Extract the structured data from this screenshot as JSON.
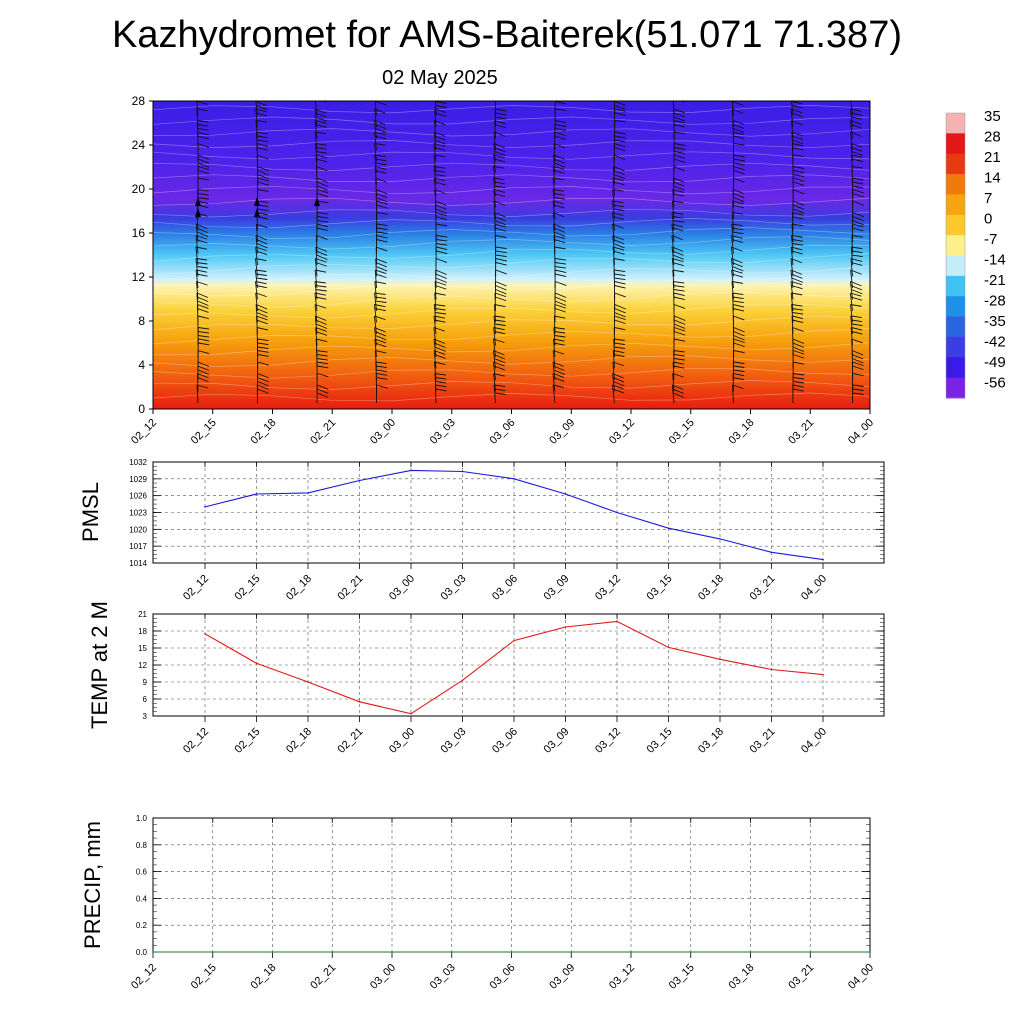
{
  "header": {
    "title": "Kazhydromet for AMS-Baiterek(51.071 71.387)",
    "subtitle": "02 May 2025"
  },
  "chart_data": [
    {
      "type": "heatmap",
      "name": "cross-section",
      "x_ticks": [
        "02_12",
        "02_15",
        "02_18",
        "02_21",
        "03_00",
        "03_03",
        "03_06",
        "03_09",
        "03_12",
        "03_15",
        "03_18",
        "03_21",
        "04_00"
      ],
      "y_ticks": [
        0,
        4,
        8,
        12,
        16,
        20,
        24,
        28
      ],
      "ylim": [
        0,
        28
      ],
      "freezing_level": [
        11.2,
        11.3,
        11.4,
        11.6,
        11.8,
        11.9,
        12.0,
        12.1,
        12.2,
        12.3,
        12.4,
        12.5,
        12.6
      ],
      "tropopause_level": [
        17.6,
        17.7,
        17.8,
        17.9,
        18.0,
        18.0,
        18.0,
        18.0,
        18.0,
        18.0,
        18.0,
        18.0,
        18.0
      ],
      "colorbar": {
        "labels": [
          "35",
          "28",
          "21",
          "14",
          "7",
          "0",
          "-7",
          "-14",
          "-21",
          "-28",
          "-35",
          "-42",
          "-49",
          "-56"
        ],
        "values": [
          35,
          28,
          21,
          14,
          7,
          0,
          -7,
          -14,
          -21,
          -28,
          -35,
          -42,
          -49,
          -56
        ],
        "colors": [
          "#f4b2b2",
          "#e21818",
          "#e83a10",
          "#f07a0c",
          "#f7a40e",
          "#fbc92a",
          "#fdf08a",
          "#c5ecf9",
          "#3fc3f4",
          "#1e90e8",
          "#2a64e0",
          "#3c3de2",
          "#3a1ae6",
          "#7b22e6"
        ]
      }
    },
    {
      "type": "line",
      "ylabel": "PMSL",
      "x": [
        "02_12",
        "02_15",
        "02_18",
        "02_21",
        "03_00",
        "03_03",
        "03_06",
        "03_09",
        "03_12",
        "03_15",
        "03_18",
        "03_21",
        "04_00"
      ],
      "y_ticks": [
        1014,
        1017,
        1020,
        1023,
        1026,
        1029,
        1032
      ],
      "ylim": [
        1014,
        1032
      ],
      "values": [
        1024.0,
        1026.3,
        1026.5,
        1028.7,
        1030.5,
        1030.3,
        1029.0,
        1026.3,
        1023.0,
        1020.2,
        1018.3,
        1015.9,
        1014.6
      ],
      "color": "#1a1ae0"
    },
    {
      "type": "line",
      "ylabel": "TEMP at 2 M",
      "x": [
        "02_12",
        "02_15",
        "02_18",
        "02_21",
        "03_00",
        "03_03",
        "03_06",
        "03_09",
        "03_12",
        "03_15",
        "03_18",
        "03_21",
        "04_00"
      ],
      "y_ticks": [
        3,
        6,
        9,
        12,
        15,
        18,
        21
      ],
      "ylim": [
        3,
        21
      ],
      "values": [
        17.5,
        12.3,
        9.0,
        5.5,
        3.4,
        9.3,
        16.3,
        18.7,
        19.7,
        15.1,
        13.0,
        11.2,
        10.3
      ],
      "color": "#e01a1a"
    },
    {
      "type": "line",
      "ylabel": "PRECIP, mm",
      "x": [
        "02_12",
        "02_15",
        "02_18",
        "02_21",
        "03_00",
        "03_03",
        "03_06",
        "03_09",
        "03_12",
        "03_15",
        "03_18",
        "03_21",
        "04_00"
      ],
      "y_ticks": [
        "0.0",
        "0.2",
        "0.4",
        "0.6",
        "0.8",
        "1.0"
      ],
      "ylim": [
        0,
        1
      ],
      "values": [
        0,
        0,
        0,
        0,
        0,
        0,
        0,
        0,
        0,
        0,
        0,
        0,
        0
      ],
      "color": "#1a7a1a"
    }
  ]
}
